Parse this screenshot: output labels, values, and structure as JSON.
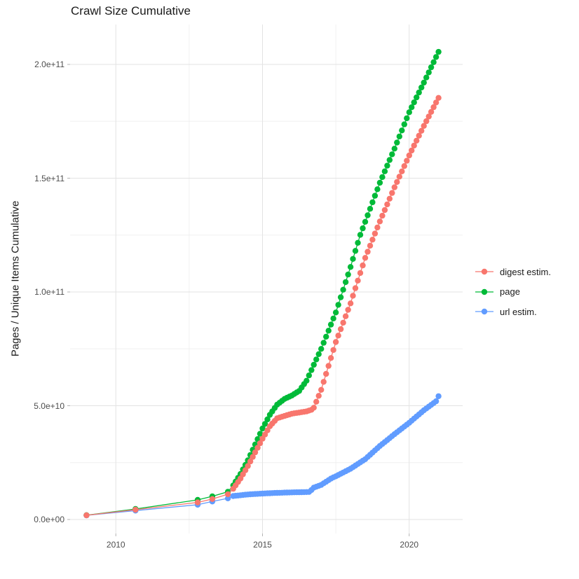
{
  "chart_data": {
    "type": "scatter",
    "title": "Crawl Size Cumulative",
    "xlabel": "",
    "ylabel": "Pages / Unique Items Cumulative",
    "x_ticks": [
      2010,
      2015,
      2020
    ],
    "y_ticks": [
      {
        "label": "0.0e+00",
        "value_e9": 0
      },
      {
        "label": "5.0e+10",
        "value_e9": 50
      },
      {
        "label": "1.0e+11",
        "value_e9": 100
      },
      {
        "label": "1.5e+11",
        "value_e9": 150
      },
      {
        "label": "2.0e+11",
        "value_e9": 200
      }
    ],
    "x_minor_ticks": [
      2012.5,
      2017.5
    ],
    "y_minor_ticks_e9": [
      25,
      75,
      125,
      175
    ],
    "xlim": [
      2008.6,
      2021.9
    ],
    "ylim_e9": [
      -11,
      218
    ],
    "grid": true,
    "legend_position": "right",
    "unit": "cumulative items; values stored in billions (1e9)",
    "sampling_note": "one point per crawl: sparse 2009-2013, monthly 2014-2021; values read off chart",
    "early_years": [
      2009.0,
      2010.67,
      2012.79,
      2013.29,
      2013.82
    ],
    "monthly_range": [
      2014.0,
      2021.0
    ],
    "series": [
      {
        "name": "digest estim.",
        "color": "#F8766D",
        "early_values_e9": [
          1.85,
          4.3,
          7.5,
          9.0,
          11.1
        ],
        "anchors_e9": [
          [
            2014.0,
            13.5
          ],
          [
            2014.25,
            18
          ],
          [
            2014.5,
            23.5
          ],
          [
            2014.75,
            29.5
          ],
          [
            2015.0,
            35.5
          ],
          [
            2015.25,
            41
          ],
          [
            2015.5,
            44.5
          ],
          [
            2015.75,
            45.5
          ],
          [
            2016.0,
            46.5
          ],
          [
            2016.5,
            47.5
          ],
          [
            2016.73,
            48.5
          ],
          [
            2017.0,
            57
          ],
          [
            2017.5,
            78
          ],
          [
            2018.0,
            95
          ],
          [
            2018.5,
            115
          ],
          [
            2019.0,
            131
          ],
          [
            2019.5,
            146
          ],
          [
            2020.0,
            160
          ],
          [
            2020.5,
            173
          ],
          [
            2021.0,
            185.3
          ]
        ]
      },
      {
        "name": "page",
        "color": "#00BA38",
        "early_values_e9": [
          1.9,
          4.6,
          8.6,
          10.2,
          12.2
        ],
        "anchors_e9": [
          [
            2014.0,
            15
          ],
          [
            2014.25,
            20
          ],
          [
            2014.5,
            26
          ],
          [
            2014.75,
            33
          ],
          [
            2015.0,
            40
          ],
          [
            2015.25,
            46
          ],
          [
            2015.5,
            50.5
          ],
          [
            2015.75,
            53
          ],
          [
            2016.0,
            54.5
          ],
          [
            2016.25,
            56.5
          ],
          [
            2016.5,
            61
          ],
          [
            2017.0,
            75
          ],
          [
            2017.5,
            91
          ],
          [
            2018.0,
            111
          ],
          [
            2018.33,
            125
          ],
          [
            2019.0,
            148
          ],
          [
            2019.5,
            163
          ],
          [
            2020.0,
            179
          ],
          [
            2020.5,
            192
          ],
          [
            2021.0,
            205.5
          ]
        ]
      },
      {
        "name": "url estim.",
        "color": "#619CFF",
        "early_values_e9": [
          1.8,
          3.9,
          6.5,
          7.9,
          9.3
        ],
        "anchors_e9": [
          [
            2014.0,
            10.3
          ],
          [
            2014.5,
            11.0
          ],
          [
            2015.0,
            11.4
          ],
          [
            2015.5,
            11.7
          ],
          [
            2016.0,
            11.9
          ],
          [
            2016.6,
            12.1
          ],
          [
            2016.75,
            14.0
          ],
          [
            2017.0,
            15.2
          ],
          [
            2017.36,
            18.2
          ],
          [
            2017.5,
            19.0
          ],
          [
            2018.0,
            22.3
          ],
          [
            2018.5,
            26.5
          ],
          [
            2019.0,
            32.3
          ],
          [
            2019.5,
            37.5
          ],
          [
            2020.0,
            42.5
          ],
          [
            2020.5,
            48.0
          ],
          [
            2020.92,
            52.0
          ],
          [
            2021.0,
            54.2
          ]
        ]
      }
    ]
  }
}
